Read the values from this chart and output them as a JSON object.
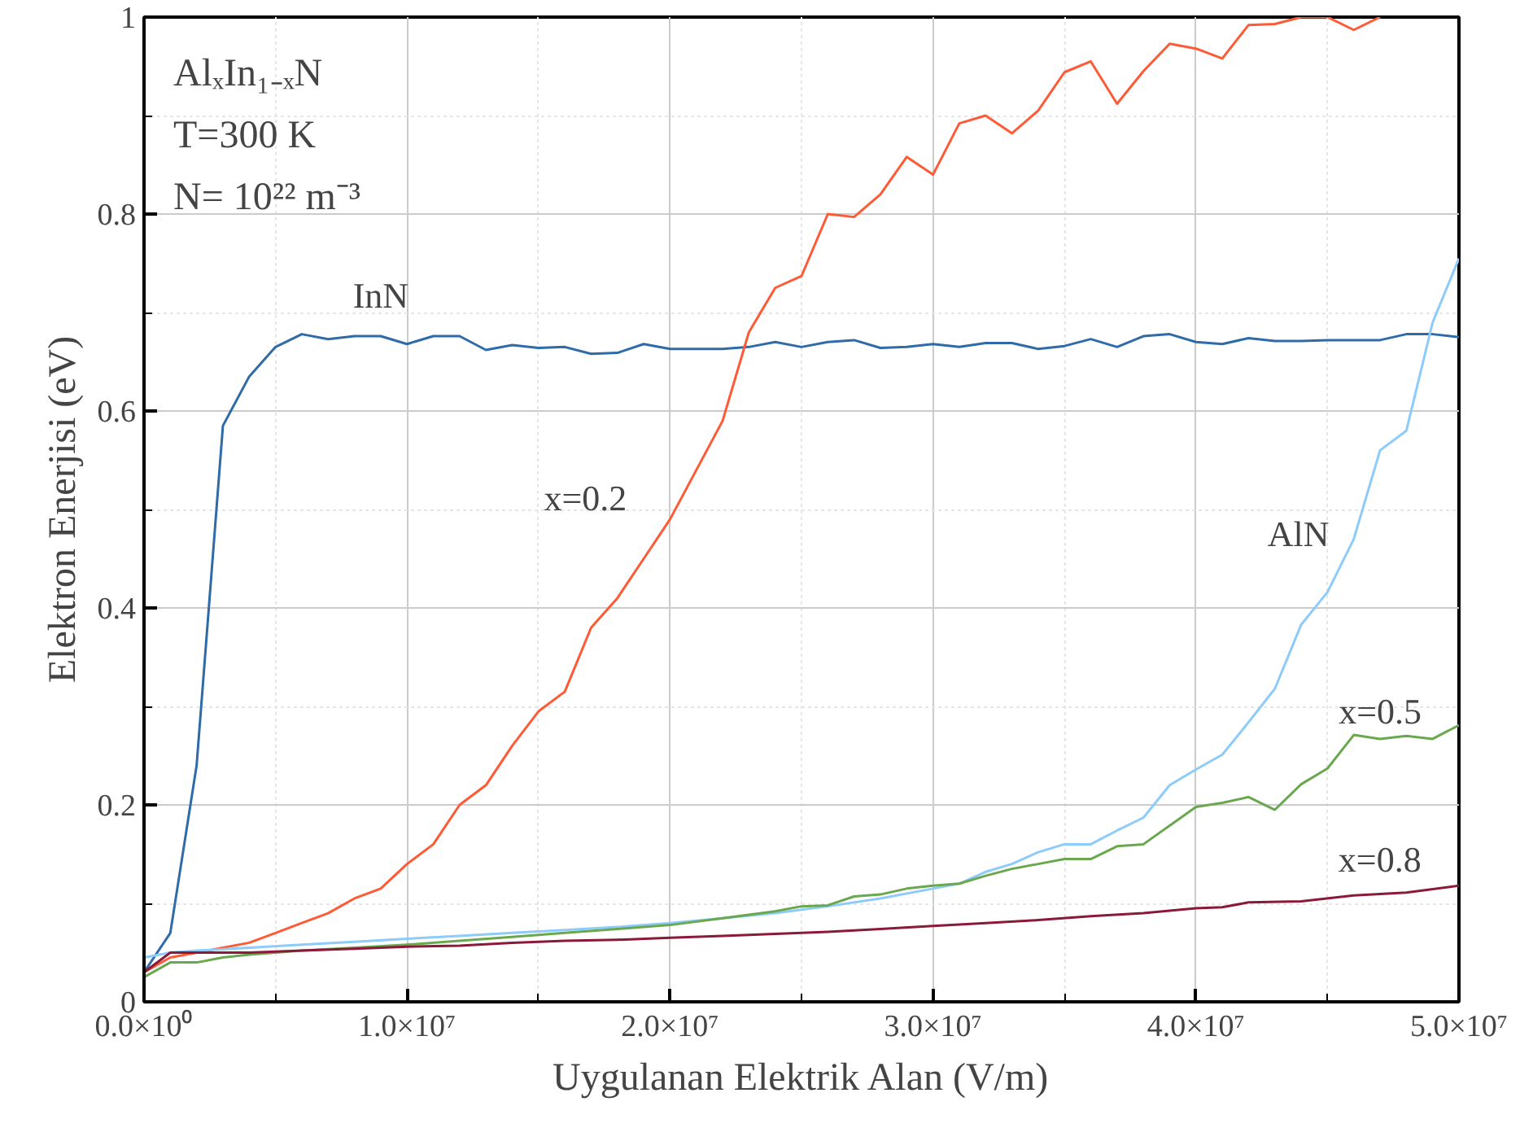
{
  "chart_data": {
    "type": "line",
    "xlabel": "Uygulanan Elektrik Alan (V/m)",
    "ylabel": "Elektron Enerjisi (eV)",
    "xlim": [
      0,
      50000000
    ],
    "ylim": [
      0,
      1
    ],
    "xticks": [
      {
        "value": 0,
        "label": "0.0×10⁰"
      },
      {
        "value": 10000000,
        "label": "1.0×10⁷"
      },
      {
        "value": 20000000,
        "label": "2.0×10⁷"
      },
      {
        "value": 30000000,
        "label": "3.0×10⁷"
      },
      {
        "value": 40000000,
        "label": "4.0×10⁷"
      },
      {
        "value": 50000000,
        "label": "5.0×10⁷"
      }
    ],
    "yticks": [
      0,
      0.2,
      0.4,
      0.6,
      0.8,
      1
    ],
    "grid": true,
    "legend": false,
    "marker": "none",
    "line_style": "solid",
    "series": [
      {
        "name": "InN",
        "color": "#2e6ba8",
        "x": [
          0,
          1000000,
          2000000,
          3000000,
          4000000,
          5000000,
          6000000,
          7000000,
          8000000,
          9000000,
          10000000,
          11000000,
          12000000,
          13000000,
          14000000,
          15000000,
          16000000,
          17000000,
          18000000,
          19000000,
          20000000,
          21000000,
          22000000,
          23000000,
          24000000,
          25000000,
          26000000,
          27000000,
          28000000,
          29000000,
          30000000,
          31000000,
          32000000,
          33000000,
          34000000,
          35000000,
          36000000,
          37000000,
          38000000,
          39000000,
          40000000,
          41000000,
          42000000,
          43000000,
          44000000,
          45000000,
          46000000,
          47000000,
          48000000,
          49000000,
          50000000
        ],
        "values": [
          0.03,
          0.07,
          0.24,
          0.585,
          0.635,
          0.665,
          0.678,
          0.673,
          0.676,
          0.676,
          0.668,
          0.676,
          0.676,
          0.662,
          0.667,
          0.664,
          0.665,
          0.658,
          0.659,
          0.668,
          0.663,
          0.663,
          0.663,
          0.665,
          0.67,
          0.665,
          0.67,
          0.672,
          0.664,
          0.665,
          0.668,
          0.665,
          0.669,
          0.669,
          0.663,
          0.666,
          0.673,
          0.665,
          0.676,
          0.678,
          0.67,
          0.668,
          0.674,
          0.671,
          0.671,
          0.672,
          0.672,
          0.672,
          0.678,
          0.678,
          0.675
        ]
      },
      {
        "name": "x=0.2",
        "color": "#ff5a36",
        "x": [
          0,
          1000000,
          2000000,
          3000000,
          4000000,
          5000000,
          6000000,
          7000000,
          8000000,
          9000000,
          10000000,
          11000000,
          12000000,
          13000000,
          14000000,
          15000000,
          16000000,
          17000000,
          18000000,
          19000000,
          20000000,
          21000000,
          22000000,
          23000000,
          24000000,
          25000000,
          26000000,
          27000000,
          28000000,
          29000000,
          30000000,
          31000000,
          32000000,
          33000000,
          34000000,
          35000000,
          36000000,
          37000000,
          38000000,
          39000000,
          40000000,
          41000000,
          42000000,
          43000000,
          44000000,
          45000000,
          46000000,
          47000000
        ],
        "values": [
          0.03,
          0.045,
          0.05,
          0.055,
          0.06,
          0.07,
          0.08,
          0.09,
          0.105,
          0.115,
          0.14,
          0.16,
          0.2,
          0.22,
          0.26,
          0.295,
          0.315,
          0.38,
          0.41,
          0.45,
          0.49,
          0.54,
          0.59,
          0.68,
          0.725,
          0.737,
          0.8,
          0.797,
          0.82,
          0.858,
          0.84,
          0.892,
          0.9,
          0.882,
          0.905,
          0.944,
          0.955,
          0.912,
          0.945,
          0.973,
          0.968,
          0.958,
          0.992,
          0.993,
          1.0,
          1.0,
          0.987,
          1.0
        ]
      },
      {
        "name": "AlN",
        "color": "#8ccbfa",
        "x": [
          0,
          1000000,
          2000000,
          4000000,
          6000000,
          8000000,
          10000000,
          12000000,
          14000000,
          16000000,
          18000000,
          20000000,
          22000000,
          24000000,
          26000000,
          28000000,
          30000000,
          31000000,
          32000000,
          33000000,
          34000000,
          35000000,
          36000000,
          37000000,
          38000000,
          39000000,
          40000000,
          41000000,
          42000000,
          43000000,
          44000000,
          45000000,
          46000000,
          47000000,
          48000000,
          49000000,
          50000000
        ],
        "values": [
          0.045,
          0.05,
          0.052,
          0.055,
          0.058,
          0.061,
          0.064,
          0.067,
          0.07,
          0.073,
          0.076,
          0.08,
          0.085,
          0.09,
          0.097,
          0.105,
          0.115,
          0.12,
          0.132,
          0.14,
          0.152,
          0.16,
          0.16,
          0.174,
          0.187,
          0.22,
          0.236,
          0.251,
          0.284,
          0.318,
          0.383,
          0.416,
          0.47,
          0.56,
          0.58,
          0.69,
          0.755
        ]
      },
      {
        "name": "x=0.5",
        "color": "#6aa84f",
        "x": [
          0,
          1000000,
          2000000,
          3000000,
          4000000,
          6000000,
          8000000,
          10000000,
          12000000,
          14000000,
          16000000,
          18000000,
          20000000,
          22000000,
          24000000,
          25000000,
          26000000,
          27000000,
          28000000,
          29000000,
          30000000,
          31000000,
          32000000,
          33000000,
          34000000,
          35000000,
          36000000,
          37000000,
          38000000,
          39000000,
          40000000,
          41000000,
          42000000,
          43000000,
          44000000,
          45000000,
          46000000,
          47000000,
          48000000,
          49000000,
          50000000
        ],
        "values": [
          0.025,
          0.04,
          0.04,
          0.045,
          0.048,
          0.052,
          0.055,
          0.058,
          0.062,
          0.066,
          0.07,
          0.074,
          0.078,
          0.085,
          0.092,
          0.097,
          0.098,
          0.107,
          0.109,
          0.115,
          0.118,
          0.12,
          0.128,
          0.135,
          0.14,
          0.145,
          0.145,
          0.158,
          0.16,
          0.179,
          0.198,
          0.202,
          0.208,
          0.195,
          0.221,
          0.237,
          0.271,
          0.267,
          0.27,
          0.267,
          0.281
        ]
      },
      {
        "name": "x=0.8",
        "color": "#8b1a3a",
        "x": [
          0,
          1000000,
          2000000,
          4000000,
          6000000,
          8000000,
          10000000,
          12000000,
          14000000,
          16000000,
          18000000,
          20000000,
          22000000,
          24000000,
          26000000,
          28000000,
          30000000,
          32000000,
          34000000,
          36000000,
          38000000,
          40000000,
          41000000,
          42000000,
          44000000,
          46000000,
          48000000,
          50000000
        ],
        "values": [
          0.03,
          0.05,
          0.05,
          0.05,
          0.052,
          0.054,
          0.056,
          0.057,
          0.06,
          0.062,
          0.063,
          0.065,
          0.067,
          0.069,
          0.071,
          0.074,
          0.077,
          0.08,
          0.083,
          0.087,
          0.09,
          0.095,
          0.096,
          0.101,
          0.102,
          0.108,
          0.111,
          0.118
        ]
      }
    ],
    "annotations": [
      "AlₓIn₁₋ₓN",
      "T=300 K",
      "N= 10²² m⁻³"
    ]
  }
}
